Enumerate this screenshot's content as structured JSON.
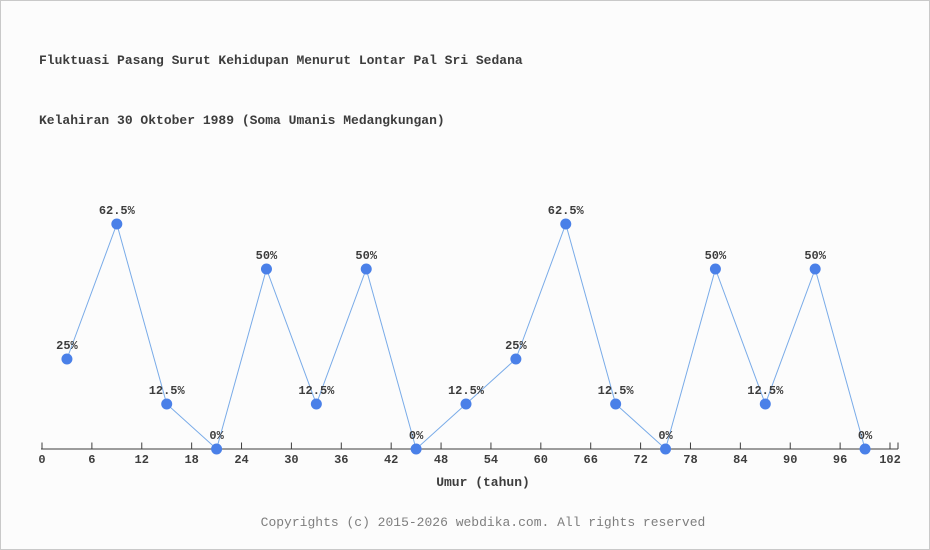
{
  "page": {
    "background": "#fcfcfc",
    "border_color": "#c9c9c9"
  },
  "footer": {
    "text": "Copyrights (c) 2015-2026 webdika.com. All rights reserved"
  },
  "chart_data": {
    "type": "line",
    "title_lines": [
      "Fluktuasi Pasang Surut Kehidupan Menurut Lontar Pal Sri Sedana",
      "Kelahiran 30 Oktober 1989 (Soma Umanis Medangkungan)"
    ],
    "xlabel": "Umur (tahun)",
    "x": [
      3,
      9,
      15,
      21,
      27,
      33,
      39,
      45,
      51,
      57,
      63,
      69,
      75,
      81,
      87,
      93,
      99
    ],
    "values": [
      25,
      62.5,
      12.5,
      0,
      50,
      12.5,
      50,
      0,
      12.5,
      25,
      62.5,
      12.5,
      0,
      50,
      12.5,
      50,
      0
    ],
    "point_labels": [
      "25%",
      "62.5%",
      "12.5%",
      "0%",
      "50%",
      "12.5%",
      "50%",
      "0%",
      "12.5%",
      "25%",
      "62.5%",
      "12.5%",
      "0%",
      "50%",
      "12.5%",
      "50%",
      "0%"
    ],
    "x_ticks": [
      0,
      6,
      12,
      18,
      24,
      30,
      36,
      42,
      48,
      54,
      60,
      66,
      72,
      78,
      84,
      90,
      96,
      102
    ],
    "xlim": [
      0,
      102
    ],
    "ylim": [
      0,
      100
    ],
    "grid": false,
    "legend": "none",
    "colors": {
      "marker": "#4a80e8",
      "line": "#79abe8",
      "axis": "#3d3d3d",
      "text": "#3d3d3d"
    }
  }
}
